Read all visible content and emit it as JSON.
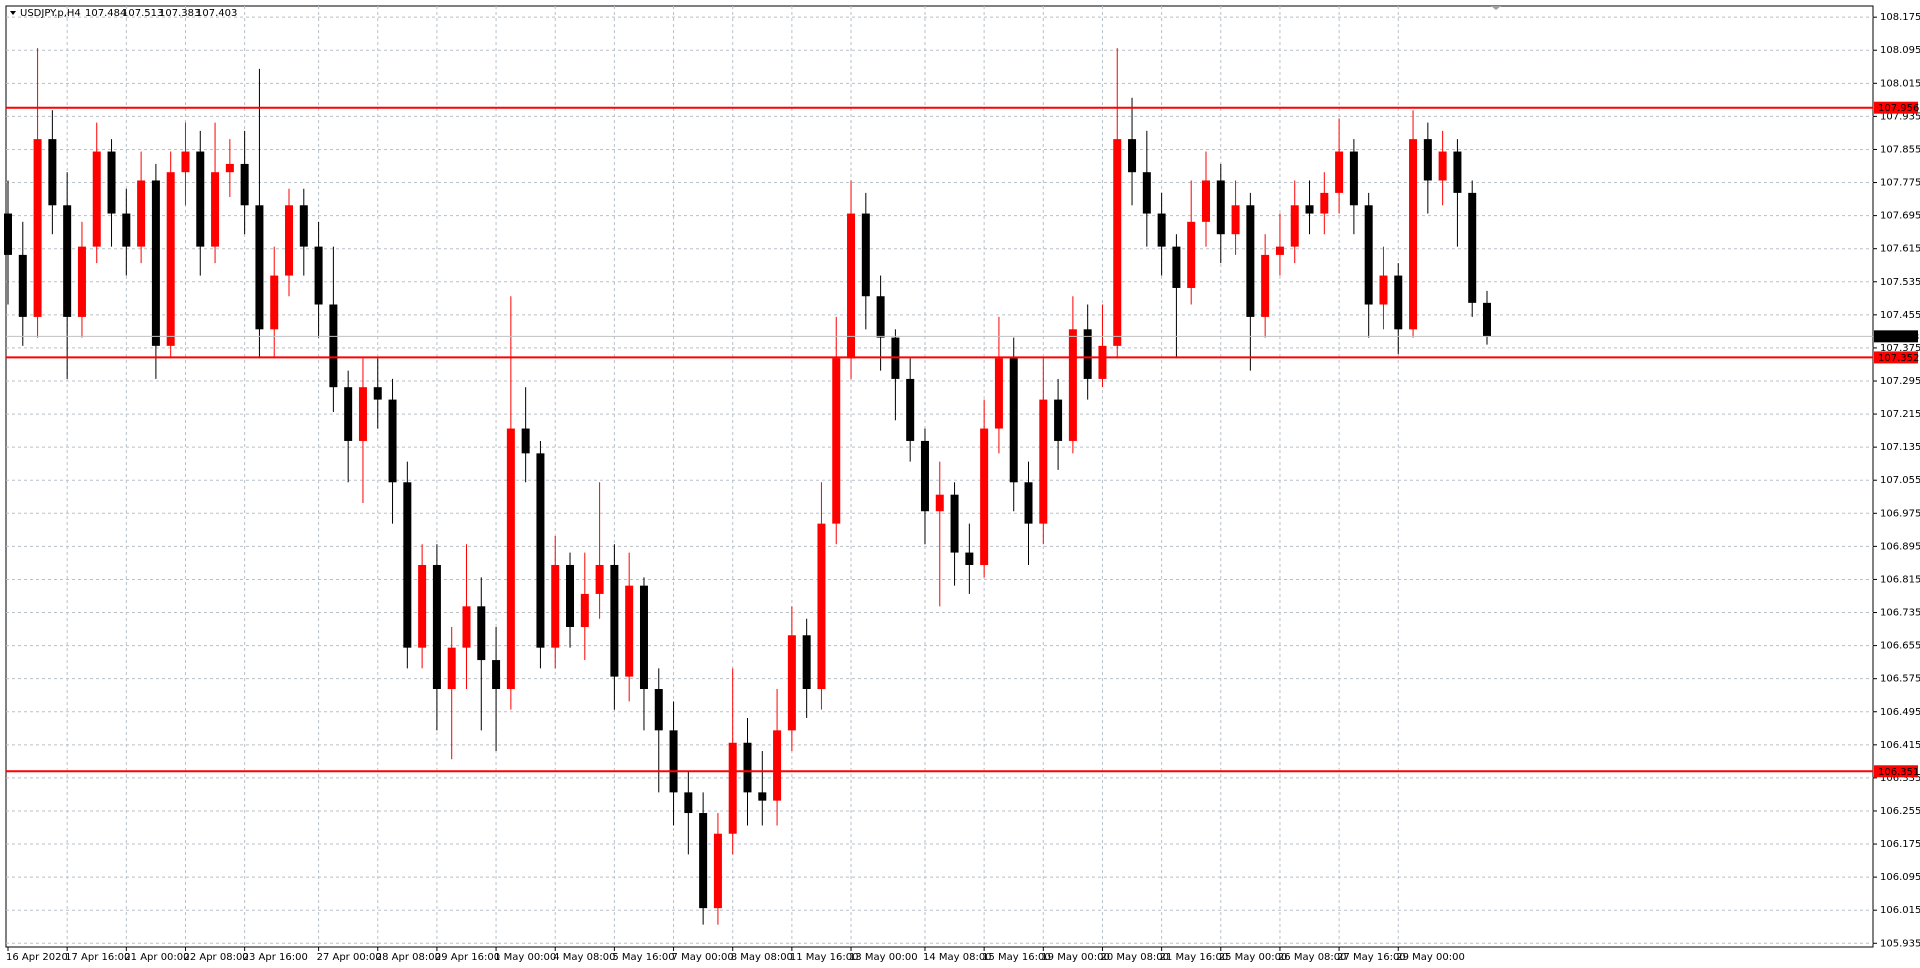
{
  "chart_data": {
    "type": "candlestick",
    "title": "USDJPY.p,H4",
    "up_color": "#ff0000",
    "down_color": "#000000",
    "grid": true,
    "categories": [
      "16 Apr 2020",
      null,
      null,
      null,
      "17 Apr 16:00",
      null,
      null,
      null,
      "21 Apr 00:00",
      null,
      null,
      null,
      "22 Apr 08:00",
      null,
      null,
      null,
      "23 Apr 16:00",
      null,
      null,
      null,
      null,
      "27 Apr 00:00",
      null,
      null,
      null,
      "28 Apr 08:00",
      null,
      null,
      null,
      "29 Apr 16:00",
      null,
      null,
      null,
      "1 May 00:00",
      null,
      null,
      null,
      "4 May 08:00",
      null,
      null,
      null,
      "5 May 16:00",
      null,
      null,
      null,
      "7 May 00:00",
      null,
      null,
      null,
      "8 May 08:00",
      null,
      null,
      null,
      "11 May 16:00",
      null,
      null,
      null,
      "13 May 00:00",
      null,
      null,
      null,
      null,
      "14 May 08:00",
      null,
      null,
      null,
      "15 May 16:00",
      null,
      null,
      null,
      "19 May 00:00",
      null,
      null,
      null,
      "20 May 08:00",
      null,
      null,
      null,
      "21 May 16:00",
      null,
      null,
      null,
      "25 May 00:00",
      null,
      null,
      null,
      "26 May 08:00",
      null,
      null,
      null,
      "27 May 16:00",
      null,
      null,
      null,
      "29 May 00:00",
      null,
      null,
      null,
      null,
      null,
      null
    ],
    "open": [
      107.7,
      107.6,
      107.45,
      107.88,
      107.72,
      107.45,
      107.62,
      107.85,
      107.7,
      107.62,
      107.78,
      107.38,
      107.8,
      107.85,
      107.62,
      107.8,
      107.82,
      107.72,
      107.42,
      107.55,
      107.72,
      107.62,
      107.48,
      107.28,
      107.15,
      107.28,
      107.25,
      107.05,
      106.65,
      106.85,
      106.55,
      106.65,
      106.75,
      106.62,
      106.55,
      107.18,
      107.12,
      106.65,
      106.85,
      106.7,
      106.78,
      106.85,
      106.58,
      106.8,
      106.55,
      106.45,
      106.3,
      106.25,
      106.02,
      106.2,
      106.42,
      106.3,
      106.28,
      106.45,
      106.68,
      106.55,
      106.95,
      107.35,
      107.7,
      107.5,
      107.4,
      107.3,
      107.15,
      106.98,
      107.02,
      106.88,
      106.85,
      107.18,
      107.35,
      107.05,
      106.95,
      107.25,
      107.15,
      107.42,
      107.3,
      107.38,
      107.88,
      107.8,
      107.7,
      107.62,
      107.52,
      107.68,
      107.78,
      107.65,
      107.72,
      107.45,
      107.6,
      107.62,
      107.72,
      107.7,
      107.75,
      107.85,
      107.72,
      107.48,
      107.55,
      107.42,
      107.88,
      107.78,
      107.85,
      107.75,
      107.484
    ],
    "high": [
      107.78,
      107.68,
      108.1,
      107.95,
      107.8,
      107.68,
      107.92,
      107.88,
      107.76,
      107.85,
      107.82,
      107.85,
      107.92,
      107.9,
      107.92,
      107.88,
      107.9,
      108.05,
      107.62,
      107.76,
      107.76,
      107.68,
      107.62,
      107.32,
      107.35,
      107.35,
      107.3,
      107.1,
      106.9,
      106.9,
      106.7,
      106.9,
      106.82,
      106.7,
      107.5,
      107.28,
      107.15,
      106.92,
      106.88,
      106.88,
      107.05,
      106.9,
      106.88,
      106.82,
      106.6,
      106.52,
      106.35,
      106.3,
      106.25,
      106.6,
      106.48,
      106.4,
      106.55,
      106.75,
      106.72,
      107.05,
      107.45,
      107.78,
      107.75,
      107.55,
      107.42,
      107.35,
      107.18,
      107.1,
      107.05,
      106.95,
      107.25,
      107.45,
      107.4,
      107.1,
      107.35,
      107.3,
      107.5,
      107.48,
      107.48,
      108.1,
      107.98,
      107.9,
      107.75,
      107.65,
      107.78,
      107.85,
      107.82,
      107.78,
      107.75,
      107.65,
      107.7,
      107.78,
      107.78,
      107.8,
      107.93,
      107.88,
      107.75,
      107.62,
      107.58,
      107.95,
      107.92,
      107.9,
      107.88,
      107.78,
      107.513
    ],
    "low": [
      107.48,
      107.38,
      107.4,
      107.65,
      107.3,
      107.4,
      107.58,
      107.62,
      107.55,
      107.58,
      107.3,
      107.35,
      107.72,
      107.55,
      107.58,
      107.74,
      107.65,
      107.35,
      107.35,
      107.5,
      107.55,
      107.4,
      107.22,
      107.05,
      107.0,
      107.18,
      106.95,
      106.6,
      106.6,
      106.45,
      106.38,
      106.55,
      106.45,
      106.4,
      106.5,
      107.05,
      106.6,
      106.6,
      106.65,
      106.62,
      106.72,
      106.5,
      106.52,
      106.45,
      106.3,
      106.22,
      106.15,
      105.98,
      105.98,
      106.15,
      106.22,
      106.22,
      106.22,
      106.4,
      106.48,
      106.5,
      106.9,
      107.3,
      107.42,
      107.32,
      107.2,
      107.1,
      106.9,
      106.75,
      106.8,
      106.78,
      106.82,
      107.12,
      106.98,
      106.85,
      106.9,
      107.08,
      107.12,
      107.25,
      107.28,
      107.35,
      107.72,
      107.62,
      107.55,
      107.35,
      107.48,
      107.62,
      107.58,
      107.6,
      107.32,
      107.4,
      107.55,
      107.58,
      107.65,
      107.65,
      107.7,
      107.65,
      107.4,
      107.42,
      107.36,
      107.4,
      107.7,
      107.72,
      107.62,
      107.45,
      107.383
    ],
    "close": [
      107.6,
      107.45,
      107.88,
      107.72,
      107.45,
      107.62,
      107.85,
      107.7,
      107.62,
      107.78,
      107.38,
      107.8,
      107.85,
      107.62,
      107.8,
      107.82,
      107.72,
      107.42,
      107.55,
      107.72,
      107.62,
      107.48,
      107.28,
      107.15,
      107.28,
      107.25,
      107.05,
      106.65,
      106.85,
      106.55,
      106.65,
      106.75,
      106.62,
      106.55,
      107.18,
      107.12,
      106.65,
      106.85,
      106.7,
      106.78,
      106.85,
      106.58,
      106.8,
      106.55,
      106.45,
      106.3,
      106.25,
      106.02,
      106.2,
      106.42,
      106.3,
      106.28,
      106.45,
      106.68,
      106.55,
      106.95,
      107.35,
      107.7,
      107.5,
      107.4,
      107.3,
      107.15,
      106.98,
      107.02,
      106.88,
      106.85,
      107.18,
      107.35,
      107.05,
      106.95,
      107.25,
      107.15,
      107.42,
      107.3,
      107.38,
      107.88,
      107.8,
      107.7,
      107.62,
      107.52,
      107.68,
      107.78,
      107.65,
      107.72,
      107.45,
      107.6,
      107.62,
      107.72,
      107.7,
      107.75,
      107.85,
      107.72,
      107.48,
      107.55,
      107.42,
      107.88,
      107.78,
      107.85,
      107.75,
      107.484,
      107.403
    ],
    "ylim": [
      105.926,
      108.202
    ],
    "yticks": [
      108.175,
      108.095,
      108.015,
      107.935,
      107.855,
      107.775,
      107.695,
      107.615,
      107.535,
      107.455,
      107.375,
      107.295,
      107.215,
      107.135,
      107.055,
      106.975,
      106.895,
      106.815,
      106.735,
      106.655,
      106.575,
      106.495,
      106.415,
      106.335,
      106.255,
      106.175,
      106.095,
      106.015,
      105.935
    ],
    "hlines": [
      {
        "value": 107.956,
        "color": "#ff0000"
      },
      {
        "value": 107.352,
        "color": "#ff0000"
      },
      {
        "value": 106.351,
        "color": "#ff0000"
      }
    ],
    "last_price": {
      "value": 107.403,
      "color": "#c0c0c0"
    }
  }
}
